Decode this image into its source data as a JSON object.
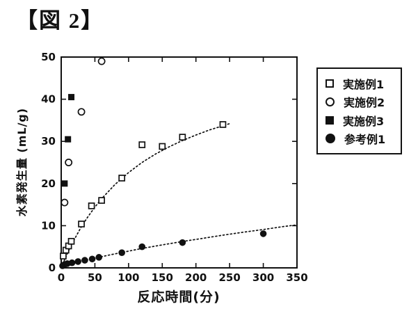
{
  "figure": {
    "title": "【図 2】"
  },
  "colors": {
    "ink": "#111111",
    "background": "#ffffff"
  },
  "axes": {
    "x": {
      "label": "反応時間(分)",
      "min": 0,
      "max": 350,
      "ticks": [
        0,
        50,
        100,
        150,
        200,
        250,
        300,
        350
      ]
    },
    "y": {
      "label": "水素発生量 (mL/g)",
      "min": 0,
      "max": 50,
      "ticks": [
        0,
        10,
        20,
        30,
        40,
        50
      ]
    }
  },
  "legend": {
    "items": [
      {
        "label": "実施例1",
        "marker": "open-square"
      },
      {
        "label": "実施例2",
        "marker": "open-circle"
      },
      {
        "label": "実施例3",
        "marker": "filled-square"
      },
      {
        "label": "参考例1",
        "marker": "filled-circle"
      }
    ]
  },
  "chart_data": {
    "type": "scatter",
    "title": "図2",
    "xlabel": "反応時間(分)",
    "ylabel": "水素発生量 (mL/g)",
    "xlim": [
      0,
      350
    ],
    "ylim": [
      0,
      50
    ],
    "grid": false,
    "legend_position": "outside-right",
    "series": [
      {
        "name": "実施例1",
        "marker": "open-square",
        "points": [
          [
            3,
            2.8
          ],
          [
            7,
            4.2
          ],
          [
            11,
            5.2
          ],
          [
            15,
            6.3
          ],
          [
            30,
            10.4
          ],
          [
            45,
            14.7
          ],
          [
            60,
            16.0
          ],
          [
            90,
            21.3
          ],
          [
            120,
            29.2
          ],
          [
            150,
            28.8
          ],
          [
            180,
            31.0
          ],
          [
            240,
            34.0
          ]
        ]
      },
      {
        "name": "実施例2",
        "marker": "open-circle",
        "points": [
          [
            5,
            15.5
          ],
          [
            11,
            25.0
          ],
          [
            30,
            37.0
          ],
          [
            60,
            49.0
          ]
        ]
      },
      {
        "name": "実施例3",
        "marker": "filled-square",
        "points": [
          [
            5,
            20.0
          ],
          [
            10,
            30.5
          ],
          [
            15,
            40.5
          ]
        ]
      },
      {
        "name": "参考例1",
        "marker": "filled-circle",
        "points": [
          [
            2,
            0.5
          ],
          [
            5,
            0.8
          ],
          [
            9,
            1.0
          ],
          [
            16,
            1.2
          ],
          [
            25,
            1.5
          ],
          [
            35,
            1.8
          ],
          [
            46,
            2.1
          ],
          [
            56,
            2.5
          ],
          [
            90,
            3.6
          ],
          [
            120,
            5.0
          ],
          [
            180,
            6.0
          ],
          [
            300,
            8.1
          ]
        ]
      }
    ],
    "fit_curves": [
      {
        "for": "実施例1",
        "style": "dotted",
        "points": [
          [
            0,
            0
          ],
          [
            5,
            1.9
          ],
          [
            10,
            3.7
          ],
          [
            15,
            5.4
          ],
          [
            20,
            6.9
          ],
          [
            30,
            9.8
          ],
          [
            40,
            12.2
          ],
          [
            50,
            14.4
          ],
          [
            60,
            16.4
          ],
          [
            80,
            19.8
          ],
          [
            100,
            22.6
          ],
          [
            120,
            25.0
          ],
          [
            140,
            27.0
          ],
          [
            160,
            28.7
          ],
          [
            180,
            30.2
          ],
          [
            200,
            31.5
          ],
          [
            220,
            32.7
          ],
          [
            240,
            33.7
          ],
          [
            252,
            34.3
          ]
        ]
      },
      {
        "for": "参考例1",
        "style": "dotted",
        "points": [
          [
            0,
            0
          ],
          [
            10,
            0.65
          ],
          [
            20,
            1.1
          ],
          [
            30,
            1.55
          ],
          [
            50,
            2.3
          ],
          [
            70,
            3.0
          ],
          [
            90,
            3.65
          ],
          [
            120,
            4.6
          ],
          [
            150,
            5.45
          ],
          [
            180,
            6.25
          ],
          [
            210,
            7.0
          ],
          [
            240,
            7.75
          ],
          [
            270,
            8.45
          ],
          [
            300,
            9.1
          ],
          [
            330,
            9.8
          ],
          [
            350,
            10.2
          ]
        ]
      }
    ]
  }
}
